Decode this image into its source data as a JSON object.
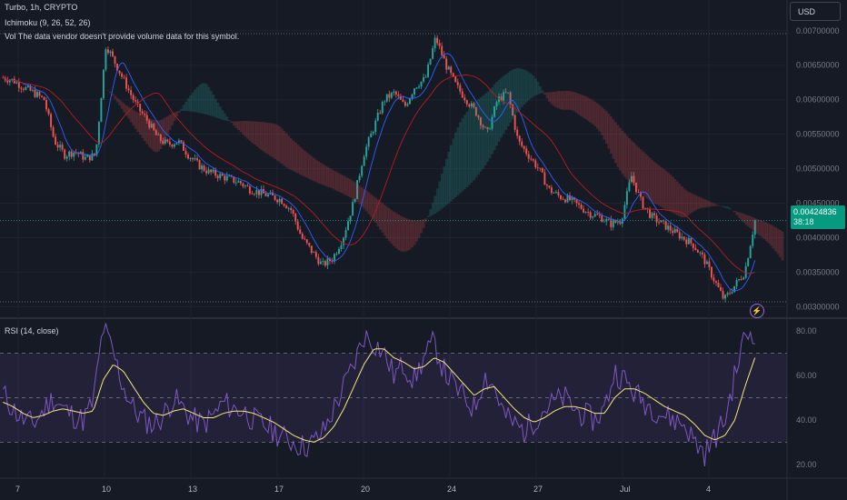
{
  "legend": {
    "symbol": "Turbo, 1h, CRYPTO",
    "ichimoku": "Ichimoku (9, 26, 52, 26)",
    "volume": "Vol  The data vendor doesn't provide volume data for this symbol.",
    "rsi": "RSI (14, close)"
  },
  "currency_button": "USD",
  "last_price": {
    "value": "0.00424836",
    "countdown": "38:18"
  },
  "alert_icon": "lightning-icon",
  "colors": {
    "up": "#26a69a",
    "down": "#ef5350",
    "rsi": "#7e57c2",
    "rsi_ma": "#f5e77a",
    "price_tag": "#089981",
    "bg": "#161a25"
  },
  "chart_data": [
    {
      "type": "candlestick",
      "title": "Turbo, 1h, CRYPTO",
      "y_ticks": [
        "0.00300000",
        "0.00350000",
        "0.00400000",
        "0.00450000",
        "0.00500000",
        "0.00550000",
        "0.00600000",
        "0.00650000",
        "0.00700000"
      ],
      "ylim": [
        0.0029,
        0.00705
      ],
      "x_ticks": [
        "7",
        "10",
        "13",
        "17",
        "20",
        "24",
        "27",
        "Jul",
        "4"
      ],
      "close_path": [
        0.00632,
        0.00628,
        0.00618,
        0.0061,
        0.006,
        0.0054,
        0.0052,
        0.00525,
        0.00515,
        0.0052,
        0.0068,
        0.0065,
        0.0062,
        0.0059,
        0.0057,
        0.00545,
        0.00535,
        0.0054,
        0.0052,
        0.00505,
        0.00495,
        0.0049,
        0.00485,
        0.0048,
        0.0047,
        0.00465,
        0.0046,
        0.00455,
        0.0044,
        0.004,
        0.0038,
        0.0036,
        0.0037,
        0.004,
        0.0045,
        0.0052,
        0.0056,
        0.006,
        0.0061,
        0.0059,
        0.0062,
        0.0063,
        0.0069,
        0.0065,
        0.0062,
        0.006,
        0.0058,
        0.0055,
        0.006,
        0.0061,
        0.0054,
        0.0052,
        0.005,
        0.0047,
        0.0046,
        0.00455,
        0.00445,
        0.00435,
        0.0043,
        0.0042,
        0.00425,
        0.0049,
        0.0045,
        0.0043,
        0.0042,
        0.0041,
        0.004,
        0.0039,
        0.0037,
        0.0034,
        0.0031,
        0.0033,
        0.0035,
        0.00424836
      ],
      "last_price": 0.00424836,
      "ichimoku_cloud_note": "shaded green/red cloud"
    },
    {
      "type": "line",
      "title": "RSI (14, close)",
      "y_ticks": [
        "20.00",
        "40.00",
        "60.00",
        "80.00"
      ],
      "ylim": [
        15,
        85
      ],
      "bands": [
        30,
        50,
        70
      ],
      "series": [
        {
          "values": [
            52,
            45,
            40,
            38,
            44,
            50,
            45,
            42,
            40,
            48,
            82,
            70,
            55,
            45,
            40,
            38,
            42,
            50,
            45,
            40,
            38,
            42,
            48,
            45,
            44,
            40,
            38,
            35,
            32,
            30,
            28,
            30,
            35,
            45,
            55,
            65,
            78,
            75,
            70,
            60,
            65,
            58,
            68,
            75,
            62,
            55,
            50,
            45,
            60,
            55,
            42,
            38,
            35,
            40,
            45,
            48,
            50,
            45,
            42,
            40,
            45,
            62,
            58,
            52,
            48,
            45,
            42,
            40,
            38,
            30,
            25,
            32,
            40,
            60,
            78,
            80
          ]
        },
        {
          "values": [
            48,
            46,
            43,
            41,
            42,
            44,
            45,
            44,
            43,
            44,
            58,
            65,
            62,
            55,
            48,
            43,
            42,
            44,
            45,
            43,
            41,
            41,
            43,
            44,
            44,
            43,
            41,
            39,
            36,
            33,
            31,
            30,
            32,
            37,
            45,
            55,
            65,
            72,
            72,
            68,
            66,
            63,
            64,
            68,
            66,
            61,
            56,
            51,
            54,
            55,
            50,
            45,
            41,
            39,
            41,
            44,
            46,
            46,
            45,
            43,
            43,
            50,
            54,
            54,
            52,
            49,
            46,
            44,
            42,
            38,
            33,
            31,
            33,
            40,
            55,
            68
          ]
        }
      ]
    }
  ]
}
